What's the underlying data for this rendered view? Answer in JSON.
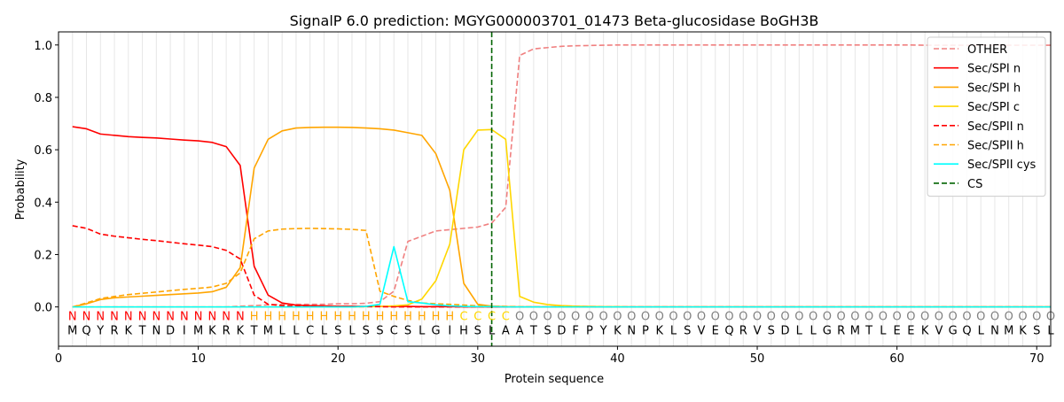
{
  "chart_data": {
    "type": "line",
    "title": "SignalP 6.0 prediction: MGYG000003701_01473 Beta-glucosidase BoGH3B",
    "xlabel": "Protein sequence",
    "ylabel": "Probability",
    "xlim": [
      0,
      71
    ],
    "ylim": [
      -0.15,
      1.05
    ],
    "xticks": [
      0,
      10,
      20,
      30,
      40,
      50,
      60,
      70
    ],
    "yticks": [
      0.0,
      0.2,
      0.4,
      0.6,
      0.8,
      1.0
    ],
    "ytick_labels": [
      "0.0",
      "0.2",
      "0.4",
      "0.6",
      "0.8",
      "1.0"
    ],
    "grid": "vertical lines at each residue",
    "legend_position": "top-right",
    "cleavage_site": 31,
    "sequence": [
      "M",
      "Q",
      "Y",
      "R",
      "K",
      "T",
      "N",
      "D",
      "I",
      "M",
      "K",
      "R",
      "K",
      "T",
      "M",
      "L",
      "L",
      "C",
      "L",
      "S",
      "L",
      "S",
      "S",
      "C",
      "S",
      "L",
      "G",
      "I",
      "H",
      "S",
      "L",
      "A",
      "A",
      "T",
      "S",
      "D",
      "F",
      "P",
      "Y",
      "K",
      "N",
      "P",
      "K",
      "L",
      "S",
      "V",
      "E",
      "Q",
      "R",
      "V",
      "S",
      "D",
      "L",
      "L",
      "G",
      "R",
      "M",
      "T",
      "L",
      "E",
      "E",
      "K",
      "V",
      "G",
      "Q",
      "L",
      "N",
      "M",
      "K",
      "S",
      "L"
    ],
    "region_labels": [
      "N",
      "N",
      "N",
      "N",
      "N",
      "N",
      "N",
      "N",
      "N",
      "N",
      "N",
      "N",
      "N",
      "H",
      "H",
      "H",
      "H",
      "H",
      "H",
      "H",
      "H",
      "H",
      "H",
      "H",
      "H",
      "H",
      "H",
      "H",
      "C",
      "C",
      "C",
      "C",
      "O",
      "O",
      "O",
      "O",
      "O",
      "O",
      "O",
      "O",
      "O",
      "O",
      "O",
      "O",
      "O",
      "O",
      "O",
      "O",
      "O",
      "O",
      "O",
      "O",
      "O",
      "O",
      "O",
      "O",
      "O",
      "O",
      "O",
      "O",
      "O",
      "O",
      "O",
      "O",
      "O",
      "O",
      "O",
      "O",
      "O",
      "O",
      "O"
    ],
    "region_colors": {
      "N": "#ff0000",
      "H": "#ffa500",
      "C": "#ffd700",
      "O": "#808080"
    },
    "series": [
      {
        "name": "OTHER",
        "color": "#f08080",
        "dash": "dashed",
        "values": [
          0.0,
          0.0,
          0.0,
          0.0,
          0.0,
          0.0,
          0.0,
          0.0,
          0.0,
          0.0,
          0.0,
          0.0,
          0.003,
          0.005,
          0.008,
          0.01,
          0.01,
          0.01,
          0.01,
          0.012,
          0.012,
          0.014,
          0.02,
          0.06,
          0.25,
          0.27,
          0.29,
          0.295,
          0.3,
          0.305,
          0.32,
          0.38,
          0.96,
          0.985,
          0.99,
          0.995,
          0.997,
          0.998,
          0.999,
          1.0,
          1.0,
          1.0,
          1.0,
          1.0,
          1.0,
          1.0,
          1.0,
          1.0,
          1.0,
          1.0,
          1.0,
          1.0,
          1.0,
          1.0,
          1.0,
          1.0,
          1.0,
          1.0,
          1.0,
          1.0,
          1.0,
          0.999,
          0.999,
          0.999,
          0.999,
          0.999,
          0.999,
          0.999,
          0.999,
          0.999,
          0.999
        ]
      },
      {
        "name": "Sec/SPI n",
        "color": "#ff0000",
        "dash": "solid",
        "values": [
          0.688,
          0.68,
          0.66,
          0.655,
          0.65,
          0.647,
          0.645,
          0.641,
          0.637,
          0.634,
          0.628,
          0.612,
          0.54,
          0.155,
          0.045,
          0.015,
          0.007,
          0.005,
          0.004,
          0.003,
          0.003,
          0.002,
          0.002,
          0.002,
          0.002,
          0.001,
          0.001,
          0.001,
          0.0,
          0.0,
          0.0,
          0.0,
          0.0,
          0.0,
          0.0,
          0.0,
          0.0,
          0.0,
          0.0,
          0.0,
          0.0,
          0.0,
          0.0,
          0.0,
          0.0,
          0.0,
          0.0,
          0.0,
          0.0,
          0.0,
          0.0,
          0.0,
          0.0,
          0.0,
          0.0,
          0.0,
          0.0,
          0.0,
          0.0,
          0.0,
          0.0,
          0.0,
          0.0,
          0.0,
          0.0,
          0.0,
          0.0,
          0.0,
          0.0,
          0.0,
          0.0
        ]
      },
      {
        "name": "Sec/SPI h",
        "color": "#ffa500",
        "dash": "solid",
        "values": [
          0.0,
          0.012,
          0.028,
          0.035,
          0.038,
          0.041,
          0.044,
          0.047,
          0.05,
          0.053,
          0.058,
          0.075,
          0.15,
          0.53,
          0.64,
          0.672,
          0.683,
          0.685,
          0.686,
          0.686,
          0.685,
          0.683,
          0.68,
          0.675,
          0.665,
          0.655,
          0.585,
          0.445,
          0.09,
          0.01,
          0.003,
          0.001,
          0.0,
          0.0,
          0.0,
          0.0,
          0.0,
          0.0,
          0.0,
          0.0,
          0.0,
          0.0,
          0.0,
          0.0,
          0.0,
          0.0,
          0.0,
          0.0,
          0.0,
          0.0,
          0.0,
          0.0,
          0.0,
          0.0,
          0.0,
          0.0,
          0.0,
          0.0,
          0.0,
          0.0,
          0.0,
          0.0,
          0.0,
          0.0,
          0.0,
          0.0,
          0.0,
          0.0,
          0.0,
          0.0,
          0.0
        ]
      },
      {
        "name": "Sec/SPI c",
        "color": "#ffd700",
        "dash": "solid",
        "values": [
          0.0,
          0.0,
          0.0,
          0.0,
          0.0,
          0.0,
          0.0,
          0.0,
          0.0,
          0.0,
          0.0,
          0.0,
          0.0,
          0.0,
          0.0,
          0.0,
          0.0,
          0.0,
          0.0,
          0.0,
          0.0,
          0.001,
          0.002,
          0.004,
          0.008,
          0.03,
          0.1,
          0.24,
          0.6,
          0.675,
          0.677,
          0.64,
          0.04,
          0.018,
          0.009,
          0.005,
          0.003,
          0.002,
          0.001,
          0.001,
          0.0,
          0.0,
          0.0,
          0.0,
          0.0,
          0.0,
          0.0,
          0.0,
          0.0,
          0.0,
          0.0,
          0.0,
          0.0,
          0.0,
          0.0,
          0.0,
          0.0,
          0.0,
          0.0,
          0.0,
          0.0,
          0.0,
          0.0,
          0.0,
          0.0,
          0.0,
          0.0,
          0.0,
          0.0,
          0.0,
          0.0
        ]
      },
      {
        "name": "Sec/SPII n",
        "color": "#ff0000",
        "dash": "dashed",
        "values": [
          0.31,
          0.3,
          0.278,
          0.27,
          0.264,
          0.258,
          0.253,
          0.247,
          0.241,
          0.236,
          0.23,
          0.216,
          0.183,
          0.045,
          0.01,
          0.005,
          0.003,
          0.002,
          0.002,
          0.001,
          0.001,
          0.001,
          0.001,
          0.0,
          0.0,
          0.0,
          0.0,
          0.0,
          0.0,
          0.0,
          0.0,
          0.0,
          0.0,
          0.0,
          0.0,
          0.0,
          0.0,
          0.0,
          0.0,
          0.0,
          0.0,
          0.0,
          0.0,
          0.0,
          0.0,
          0.0,
          0.0,
          0.0,
          0.0,
          0.0,
          0.0,
          0.0,
          0.0,
          0.0,
          0.0,
          0.0,
          0.0,
          0.0,
          0.0,
          0.0,
          0.0,
          0.0,
          0.0,
          0.0,
          0.0,
          0.0,
          0.0,
          0.0,
          0.0,
          0.0,
          0.0
        ]
      },
      {
        "name": "Sec/SPII h",
        "color": "#ffa500",
        "dash": "dashed",
        "values": [
          0.0,
          0.015,
          0.032,
          0.04,
          0.047,
          0.052,
          0.057,
          0.062,
          0.067,
          0.071,
          0.076,
          0.09,
          0.13,
          0.26,
          0.29,
          0.297,
          0.299,
          0.3,
          0.299,
          0.298,
          0.296,
          0.292,
          0.06,
          0.04,
          0.025,
          0.015,
          0.012,
          0.01,
          0.007,
          0.004,
          0.003,
          0.002,
          0.001,
          0.0,
          0.0,
          0.0,
          0.0,
          0.0,
          0.0,
          0.0,
          0.0,
          0.0,
          0.0,
          0.0,
          0.0,
          0.0,
          0.0,
          0.0,
          0.0,
          0.0,
          0.0,
          0.0,
          0.0,
          0.0,
          0.0,
          0.0,
          0.0,
          0.0,
          0.0,
          0.0,
          0.0,
          0.0,
          0.0,
          0.0,
          0.0,
          0.0,
          0.0,
          0.0,
          0.0,
          0.0,
          0.0
        ]
      },
      {
        "name": "Sec/SPII cys",
        "color": "#00ffff",
        "dash": "solid",
        "values": [
          0.0,
          0.0,
          0.0,
          0.0,
          0.0,
          0.0,
          0.0,
          0.0,
          0.0,
          0.0,
          0.0,
          0.0,
          0.0,
          0.0,
          0.0,
          0.0,
          0.0,
          0.0,
          0.0,
          0.0,
          0.0,
          0.002,
          0.01,
          0.23,
          0.02,
          0.015,
          0.008,
          0.004,
          0.002,
          0.001,
          0.001,
          0.0,
          0.0,
          0.0,
          0.0,
          0.0,
          0.0,
          0.0,
          0.0,
          0.0,
          0.0,
          0.0,
          0.0,
          0.0,
          0.0,
          0.0,
          0.0,
          0.0,
          0.0,
          0.0,
          0.0,
          0.0,
          0.0,
          0.0,
          0.0,
          0.0,
          0.0,
          0.0,
          0.0,
          0.0,
          0.0,
          0.0,
          0.0,
          0.0,
          0.0,
          0.0,
          0.0,
          0.0,
          0.0,
          0.0,
          0.0
        ]
      }
    ],
    "cs_series": {
      "name": "CS",
      "color": "#006400",
      "dash": "dashed"
    }
  }
}
